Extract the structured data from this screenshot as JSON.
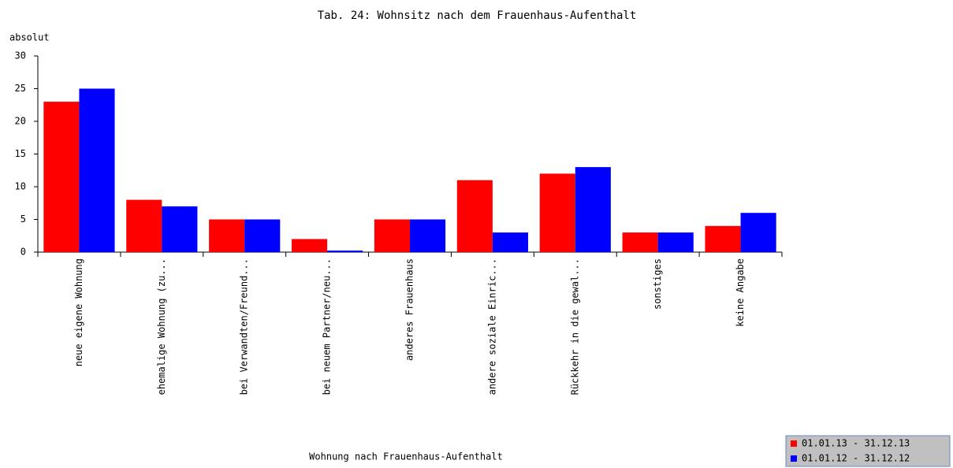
{
  "chart_data": {
    "type": "bar",
    "title": "Tab. 24: Wohnsitz nach dem Frauenhaus-Aufenthalt",
    "y_label": "absolut",
    "x_label": "Wohnung nach Frauenhaus-Aufenthalt",
    "categories": [
      "neue eigene Wohnung",
      "ehemalige Wohnung (zu...",
      "bei Verwandten/Freund...",
      "bei neuem Partner/neu...",
      "anderes Frauenhaus",
      "andere soziale Einric...",
      "Rückkehr in die gewal...",
      "sonstiges",
      "keine Angabe"
    ],
    "series": [
      {
        "name": "01.01.13 - 31.12.13",
        "color": "#ff0000",
        "values": [
          23,
          8,
          5,
          2,
          5,
          11,
          12,
          3,
          4
        ]
      },
      {
        "name": "01.01.12 - 31.12.12",
        "color": "#0000ff",
        "values": [
          25,
          7,
          5,
          0,
          5,
          3,
          13,
          3,
          6
        ]
      }
    ],
    "ylim": [
      0,
      30
    ],
    "yticks": [
      0,
      5,
      10,
      15,
      20,
      25,
      30
    ],
    "grid": false
  }
}
